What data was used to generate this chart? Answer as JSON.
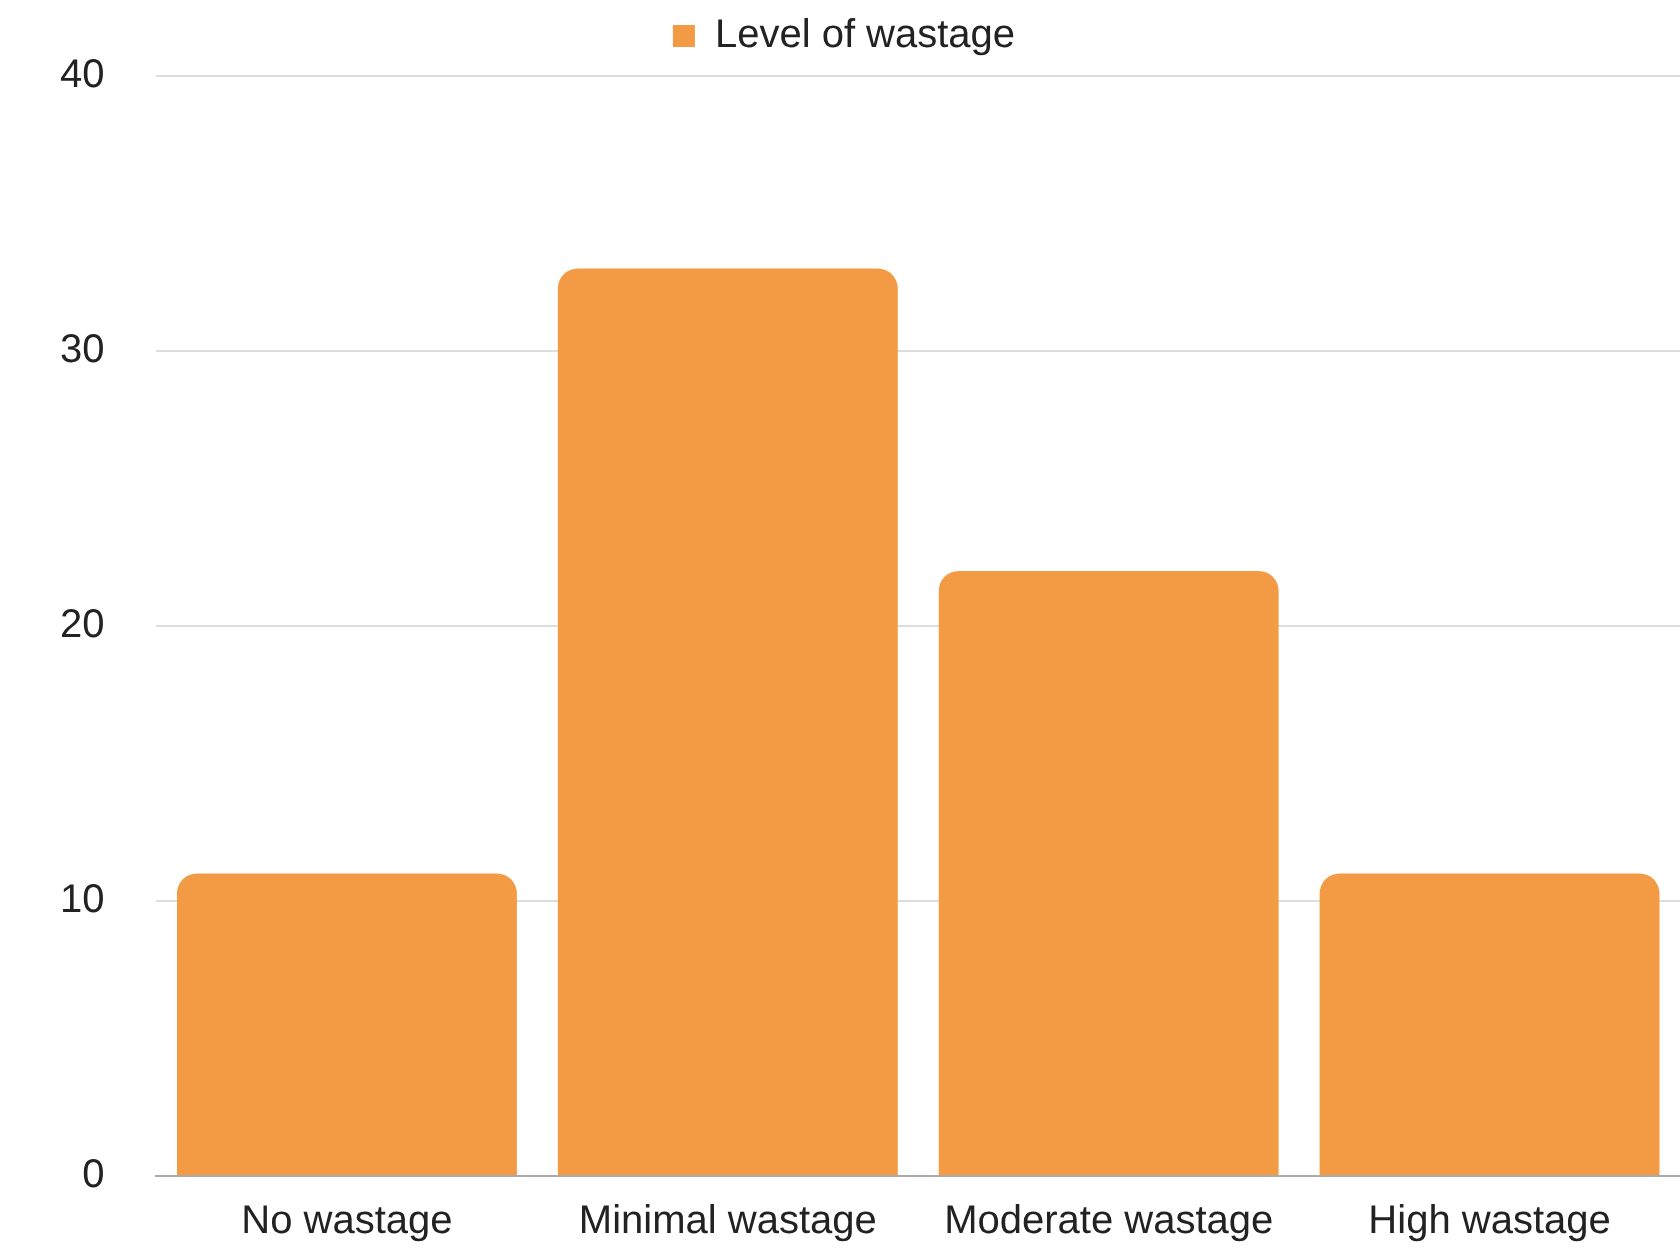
{
  "chart_data": {
    "type": "bar",
    "categories": [
      "No wastage",
      "Minimal wastage",
      "Moderate wastage",
      "High wastage"
    ],
    "series": [
      {
        "name": "Level of wastage",
        "color": "#f39a44",
        "values": [
          11,
          33,
          22,
          11
        ]
      }
    ],
    "ylim": [
      0,
      40
    ],
    "yticks": [
      0,
      10,
      20,
      30,
      40
    ],
    "grid": "y",
    "legend": "top"
  }
}
